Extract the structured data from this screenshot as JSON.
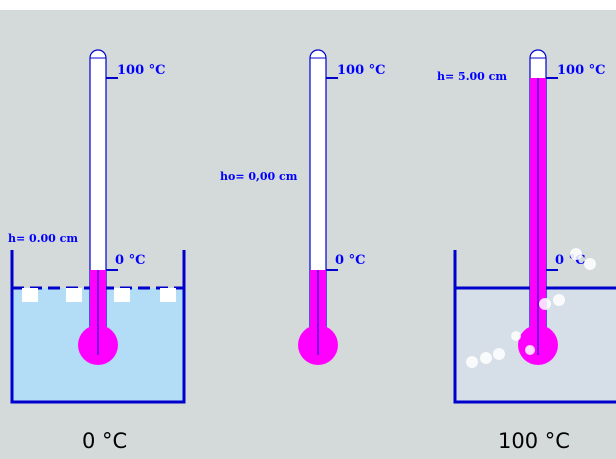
{
  "thermometers": [
    {
      "top_label": "100 °C",
      "zero_label": "0 °C",
      "height_label": "h= 0.00 cm",
      "bottom_label": "0 °C"
    },
    {
      "top_label": "100 °C",
      "zero_label": "0 °C",
      "height_label": "ho= 0,00 cm"
    },
    {
      "top_label": "100 °C",
      "zero_label": "0 °C",
      "height_label": "h= 5.00 cm",
      "bottom_label": "100 °C"
    }
  ]
}
